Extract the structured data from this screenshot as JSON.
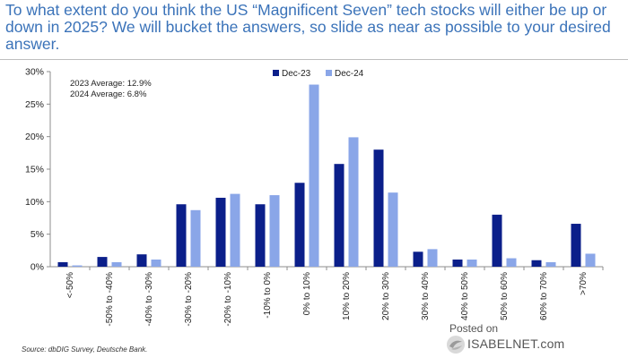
{
  "title": "To what extent do you think the US “Magnificent Seven” tech stocks will either be up or down in 2025? We will bucket the answers, so slide as near as possible to your desired answer.",
  "source": "Source: dbDIG Survey, Deutsche Bank.",
  "watermark": {
    "posted": "Posted on",
    "site": "ISABELNET.com",
    "logo_icon": "isabelnet-logo-icon"
  },
  "colors": {
    "dec23": "#0b1f8a",
    "dec24": "#8aa6e8",
    "title": "#3b73b9",
    "axis": "#8c8c8c"
  },
  "chart_data": {
    "type": "bar",
    "categories": [
      "<-50%",
      "-50% to -40%",
      "-40% to -30%",
      "-30% to -20%",
      "-20% to -10%",
      "-10% to 0%",
      "0% to 10%",
      "10% to 20%",
      "20% to 30%",
      "30% to 40%",
      "40% to 50%",
      "50% to 60%",
      "60% to 70%",
      ">70%"
    ],
    "series": [
      {
        "name": "Dec-23",
        "color": "#0b1f8a",
        "values": [
          0.7,
          1.5,
          1.9,
          9.6,
          10.6,
          9.6,
          12.9,
          15.8,
          18.0,
          2.3,
          1.1,
          8.0,
          1.0,
          6.6
        ]
      },
      {
        "name": "Dec-24",
        "color": "#8aa6e8",
        "values": [
          0.2,
          0.7,
          1.1,
          8.7,
          11.2,
          11.0,
          28.0,
          19.9,
          11.4,
          2.7,
          1.1,
          1.3,
          0.7,
          2.0
        ]
      }
    ],
    "ylim": [
      0,
      30
    ],
    "yticks": [
      0,
      5,
      10,
      15,
      20,
      25,
      30
    ],
    "ytick_labels": [
      "0%",
      "5%",
      "10%",
      "15%",
      "20%",
      "25%",
      "30%"
    ],
    "annotations": [
      "2023 Average: 12.9%",
      "2024 Average: 6.8%"
    ],
    "legend_position": "top",
    "grid": false
  }
}
